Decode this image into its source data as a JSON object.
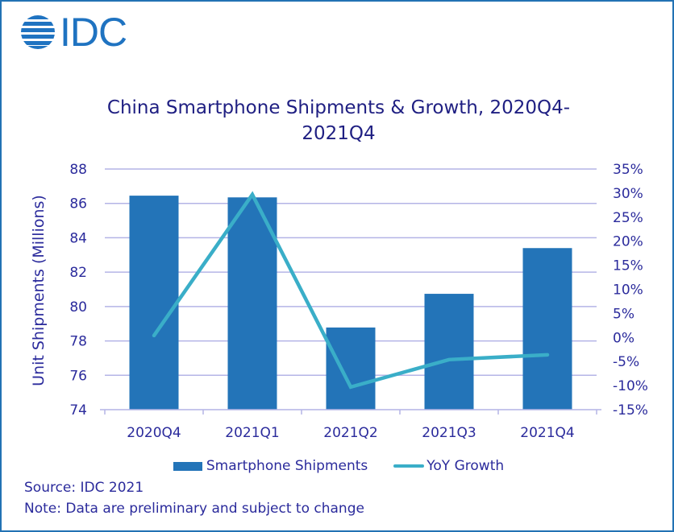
{
  "logo": {
    "text": "IDC",
    "icon": "idc-globe-icon"
  },
  "chart_data": {
    "type": "bar+line",
    "title": "China Smartphone Shipments & Growth, 2020Q4-2021Q4",
    "title_lines": [
      "China Smartphone Shipments & Growth, 2020Q4-",
      "2021Q4"
    ],
    "categories": [
      "2020Q4",
      "2021Q1",
      "2021Q2",
      "2021Q3",
      "2021Q4"
    ],
    "series": [
      {
        "name": "Smartphone Shipments",
        "type": "bar",
        "axis": "left",
        "color": "#2374b8",
        "values": [
          86.45,
          86.35,
          78.78,
          80.74,
          83.4
        ]
      },
      {
        "name": "YoY Growth",
        "type": "line",
        "axis": "right",
        "color": "#3aaec8",
        "values": [
          0.4,
          29.7,
          -10.3,
          -4.6,
          -3.6
        ]
      }
    ],
    "ylabel": "Unit Shipments (Millions)",
    "ylabel_right": "",
    "xlabel": "",
    "ylim": [
      74,
      88
    ],
    "ylim_right": [
      -15,
      35
    ],
    "yticks": [
      "74",
      "76",
      "78",
      "80",
      "82",
      "84",
      "86",
      "88"
    ],
    "yticks_right": [
      "-15%",
      "-10%",
      "-5%",
      "0%",
      "5%",
      "10%",
      "15%",
      "20%",
      "25%",
      "30%",
      "35%"
    ],
    "grid": true,
    "legend_position": "bottom",
    "grid_color": "#b4b4e6",
    "text_color": "#2b2b9c"
  },
  "footer": {
    "source": "Source: IDC 2021",
    "note": "Note: Data are preliminary and subject to change"
  }
}
